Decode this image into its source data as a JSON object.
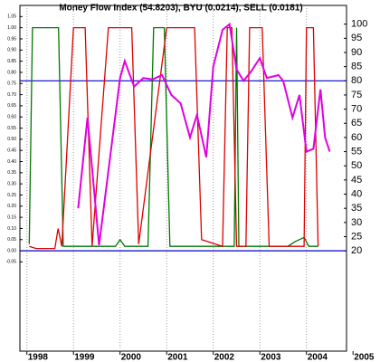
{
  "chart_data": {
    "type": "line",
    "title": "Money Flow Index (54.8203), BYU (0.0214), SELL (0.0181)",
    "xlim": [
      1997.85,
      2004.86
    ],
    "xticks": [
      1998,
      1999,
      2000,
      2001,
      2002,
      2003,
      2004,
      2005
    ],
    "ylim": [
      -0.45,
      1.1
    ],
    "yticks": [
      {
        "value": -0.05,
        "label": "-0.05"
      },
      {
        "value": 0,
        "label": "0.00"
      },
      {
        "value": 0.05,
        "label": "0.05"
      },
      {
        "value": 0.1,
        "label": "0.10"
      },
      {
        "value": 0.15,
        "label": "0.15"
      },
      {
        "value": 0.2,
        "label": "0.20"
      },
      {
        "value": 0.25,
        "label": "0.25"
      },
      {
        "value": 0.3,
        "label": "0.30"
      },
      {
        "value": 0.35,
        "label": "0.35"
      },
      {
        "value": 0.4,
        "label": "0.40"
      },
      {
        "value": 0.45,
        "label": "0.45"
      },
      {
        "value": 0.5,
        "label": "0.50"
      },
      {
        "value": 0.55,
        "label": "0.55"
      },
      {
        "value": 0.6,
        "label": "0.60"
      },
      {
        "value": 0.65,
        "label": "0.65"
      },
      {
        "value": 0.7,
        "label": "0.70"
      },
      {
        "value": 0.75,
        "label": "0.75"
      },
      {
        "value": 0.8,
        "label": "0.80"
      },
      {
        "value": 0.85,
        "label": "0.85"
      },
      {
        "value": 0.9,
        "label": "0.90"
      },
      {
        "value": 0.95,
        "label": "0.95"
      },
      {
        "value": 1,
        "label": "1.00"
      },
      {
        "value": 1.05,
        "label": "1.05"
      }
    ],
    "y2lim": [
      -15.4,
      106.6
    ],
    "y2ticks": [
      20,
      25,
      30,
      35,
      40,
      45,
      50,
      55,
      60,
      65,
      70,
      75,
      80,
      85,
      90,
      95,
      100
    ],
    "levels": [
      80,
      20
    ],
    "level_color": "#0000cc",
    "grid": true,
    "series": [
      {
        "name": "BYU",
        "color": "#007700",
        "x": [
          1998.05,
          1998.12,
          1998.68,
          1998.78,
          1999.9,
          2000.0,
          2000.1,
          2000.6,
          2000.72,
          2000.95,
          2001.07,
          2002.45,
          2002.5,
          2002.55,
          2002.6,
          2003.6,
          2003.75,
          2003.95,
          2004.05,
          2004.25
        ],
        "values": [
          0.03,
          1.0,
          1.0,
          0.02,
          0.02,
          0.05,
          0.02,
          0.02,
          1.0,
          1.0,
          0.02,
          0.02,
          1.0,
          0.02,
          0.02,
          0.02,
          0.04,
          0.06,
          0.02,
          0.02
        ]
      },
      {
        "name": "SELL",
        "color": "#dd0000",
        "x": [
          1998.05,
          1998.2,
          1998.6,
          1998.67,
          1998.75,
          1999.0,
          1999.25,
          1999.4,
          1999.75,
          2000.25,
          2000.4,
          2001.0,
          2001.6,
          2001.75,
          2002.2,
          2002.3,
          2002.4,
          2002.5,
          2002.7,
          2002.78,
          2003.05,
          2003.2,
          2003.95,
          2004.0,
          2004.15,
          2004.25
        ],
        "values": [
          0.02,
          0.01,
          0.01,
          0.1,
          0.02,
          1.0,
          1.0,
          0.02,
          1.0,
          1.0,
          0.03,
          1.0,
          1.0,
          0.05,
          0.02,
          1.0,
          1.0,
          0.02,
          0.02,
          1.0,
          1.0,
          0.02,
          0.02,
          1.0,
          1.0,
          0.02
        ]
      },
      {
        "name": "Money Flow Index",
        "color": "#e000e0",
        "axis": "y2",
        "x": [
          1999.1,
          1999.3,
          1999.55,
          2000.0,
          2000.1,
          2000.3,
          2000.5,
          2000.7,
          2000.9,
          2001.1,
          2001.3,
          2001.5,
          2001.65,
          2001.85,
          2002.0,
          2002.2,
          2002.35,
          2002.5,
          2002.65,
          2002.8,
          2003.0,
          2003.15,
          2003.4,
          2003.5,
          2003.7,
          2003.85,
          2004.0,
          2004.15,
          2004.3,
          2004.4,
          2004.5
        ],
        "values": [
          35,
          67,
          22,
          81,
          87,
          78,
          81,
          80.5,
          82,
          75,
          72,
          60,
          68,
          53,
          85,
          98,
          100,
          84,
          80,
          83,
          88,
          81,
          82,
          80,
          67,
          75,
          55,
          56,
          77,
          60,
          55
        ]
      }
    ]
  }
}
